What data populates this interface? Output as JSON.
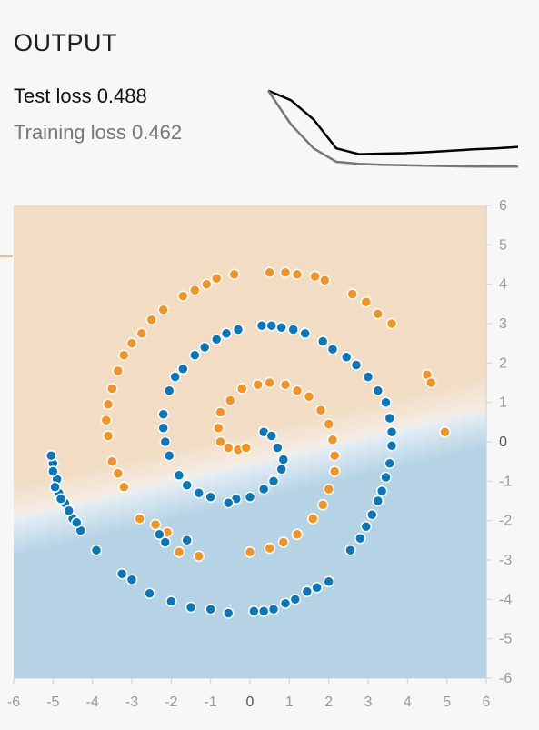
{
  "output": {
    "title": "OUTPUT",
    "test_loss": "Test loss 0.488",
    "training_loss": "Training loss 0.462"
  },
  "colors": {
    "orange": "#f59322",
    "blue": "#0877bd",
    "region_orange": "#f2dcc3",
    "region_blue": "#b6d3e6",
    "test_curve": "#000000",
    "train_curve": "#777777"
  },
  "loss_chart": {
    "test": [
      0.62,
      0.6,
      0.56,
      0.5,
      0.488,
      0.489,
      0.49,
      0.492,
      0.495,
      0.498,
      0.5,
      0.503
    ],
    "train": [
      0.62,
      0.55,
      0.5,
      0.472,
      0.468,
      0.466,
      0.465,
      0.464,
      0.463,
      0.4625,
      0.462,
      0.462
    ]
  },
  "chart_data": {
    "type": "scatter",
    "xlim": [
      -6,
      6
    ],
    "ylim": [
      -6,
      6
    ],
    "x_ticks": [
      "-6",
      "-5",
      "-4",
      "-3",
      "-2",
      "-1",
      "0",
      "1",
      "2",
      "3",
      "4",
      "5",
      "6"
    ],
    "y_ticks": [
      "6",
      "5",
      "4",
      "3",
      "2",
      "1",
      "0",
      "-1",
      "-2",
      "-3",
      "-4",
      "-5",
      "-6"
    ],
    "boundary": {
      "slope": 0.23,
      "intercept": -0.6
    },
    "series": [
      {
        "class": "orange",
        "points": [
          [
            0.5,
            1.5
          ],
          [
            0.2,
            1.45
          ],
          [
            -0.2,
            1.35
          ],
          [
            -0.5,
            1.05
          ],
          [
            -0.75,
            0.75
          ],
          [
            -0.8,
            0.35
          ],
          [
            -0.75,
            0.0
          ],
          [
            -0.55,
            -0.15
          ],
          [
            -0.3,
            -0.2
          ],
          [
            -0.1,
            -0.15
          ],
          [
            0.9,
            1.45
          ],
          [
            1.2,
            1.3
          ],
          [
            1.5,
            1.15
          ],
          [
            1.8,
            0.8
          ],
          [
            2.0,
            0.45
          ],
          [
            2.1,
            0.05
          ],
          [
            2.15,
            -0.35
          ],
          [
            2.15,
            -0.75
          ],
          [
            2.0,
            -1.2
          ],
          [
            1.85,
            -1.6
          ],
          [
            1.6,
            -1.95
          ],
          [
            1.2,
            -2.35
          ],
          [
            0.85,
            -2.55
          ],
          [
            0.5,
            -2.7
          ],
          [
            0.0,
            -2.8
          ],
          [
            -1.3,
            -2.9
          ],
          [
            -1.8,
            -2.8
          ],
          [
            -2.1,
            -2.3
          ],
          [
            -2.4,
            -2.1
          ],
          [
            -2.8,
            -1.95
          ],
          [
            -3.2,
            -1.15
          ],
          [
            -3.35,
            -0.8
          ],
          [
            -3.5,
            -0.5
          ],
          [
            -3.6,
            0.15
          ],
          [
            -3.65,
            0.55
          ],
          [
            -3.6,
            0.95
          ],
          [
            -3.5,
            1.35
          ],
          [
            -3.35,
            1.8
          ],
          [
            -3.2,
            2.2
          ],
          [
            -3.0,
            2.5
          ],
          [
            -2.75,
            2.75
          ],
          [
            -2.5,
            3.1
          ],
          [
            -2.2,
            3.35
          ],
          [
            -1.7,
            3.7
          ],
          [
            -1.4,
            3.85
          ],
          [
            -1.1,
            4.0
          ],
          [
            -0.85,
            4.15
          ],
          [
            -0.4,
            4.25
          ],
          [
            0.5,
            4.3
          ],
          [
            0.9,
            4.3
          ],
          [
            1.2,
            4.25
          ],
          [
            1.65,
            4.2
          ],
          [
            1.9,
            4.1
          ],
          [
            2.6,
            3.75
          ],
          [
            2.95,
            3.55
          ],
          [
            3.25,
            3.25
          ],
          [
            3.6,
            3.0
          ],
          [
            4.5,
            1.7
          ],
          [
            4.6,
            1.5
          ],
          [
            4.95,
            0.25
          ]
        ]
      },
      {
        "class": "blue",
        "points": [
          [
            0.35,
            0.25
          ],
          [
            0.55,
            0.15
          ],
          [
            0.7,
            -0.15
          ],
          [
            0.85,
            -0.45
          ],
          [
            0.8,
            -0.7
          ],
          [
            0.6,
            -1.0
          ],
          [
            0.35,
            -1.2
          ],
          [
            0.0,
            -1.4
          ],
          [
            -0.35,
            -1.45
          ],
          [
            -0.55,
            -1.55
          ],
          [
            -1.0,
            -1.4
          ],
          [
            -1.3,
            -1.3
          ],
          [
            -1.6,
            -1.1
          ],
          [
            -1.8,
            -0.85
          ],
          [
            -2.05,
            -0.35
          ],
          [
            -2.15,
            0.0
          ],
          [
            -2.2,
            0.35
          ],
          [
            -2.2,
            0.7
          ],
          [
            -2.05,
            1.3
          ],
          [
            -1.9,
            1.65
          ],
          [
            -1.7,
            1.85
          ],
          [
            -1.4,
            2.2
          ],
          [
            -1.15,
            2.4
          ],
          [
            -0.85,
            2.6
          ],
          [
            -0.6,
            2.75
          ],
          [
            -0.3,
            2.85
          ],
          [
            0.3,
            2.95
          ],
          [
            0.55,
            2.95
          ],
          [
            0.8,
            2.9
          ],
          [
            1.1,
            2.85
          ],
          [
            1.4,
            2.75
          ],
          [
            1.85,
            2.55
          ],
          [
            2.1,
            2.35
          ],
          [
            2.45,
            2.15
          ],
          [
            2.7,
            1.95
          ],
          [
            3.0,
            1.65
          ],
          [
            3.25,
            1.3
          ],
          [
            3.45,
            1.0
          ],
          [
            3.55,
            0.6
          ],
          [
            3.6,
            0.25
          ],
          [
            3.6,
            -0.1
          ],
          [
            3.55,
            -0.55
          ],
          [
            3.45,
            -0.9
          ],
          [
            3.35,
            -1.25
          ],
          [
            3.25,
            -1.5
          ],
          [
            3.1,
            -1.85
          ],
          [
            2.95,
            -2.15
          ],
          [
            2.8,
            -2.45
          ],
          [
            2.55,
            -2.75
          ],
          [
            2.0,
            -3.55
          ],
          [
            1.7,
            -3.7
          ],
          [
            1.45,
            -3.8
          ],
          [
            1.15,
            -4.0
          ],
          [
            0.9,
            -4.1
          ],
          [
            0.6,
            -4.25
          ],
          [
            0.35,
            -4.3
          ],
          [
            0.1,
            -4.3
          ],
          [
            -0.55,
            -4.35
          ],
          [
            -1.0,
            -4.25
          ],
          [
            -1.5,
            -4.2
          ],
          [
            -2.0,
            -4.05
          ],
          [
            -2.55,
            -3.85
          ],
          [
            -3.0,
            -3.5
          ],
          [
            -3.25,
            -3.35
          ],
          [
            -3.9,
            -2.75
          ],
          [
            -4.3,
            -2.25
          ],
          [
            -4.5,
            -1.95
          ],
          [
            -4.7,
            -1.55
          ],
          [
            -4.85,
            -1.3
          ],
          [
            -4.9,
            -0.95
          ],
          [
            -5.0,
            -0.55
          ],
          [
            -5.05,
            -0.35
          ],
          [
            -4.4,
            -2.05
          ],
          [
            -4.6,
            -1.75
          ],
          [
            -4.8,
            -1.45
          ],
          [
            -4.95,
            -1.15
          ],
          [
            -5.0,
            -0.75
          ],
          [
            -2.15,
            -2.55
          ],
          [
            -2.3,
            -2.35
          ],
          [
            -1.6,
            -2.5
          ]
        ]
      }
    ]
  }
}
